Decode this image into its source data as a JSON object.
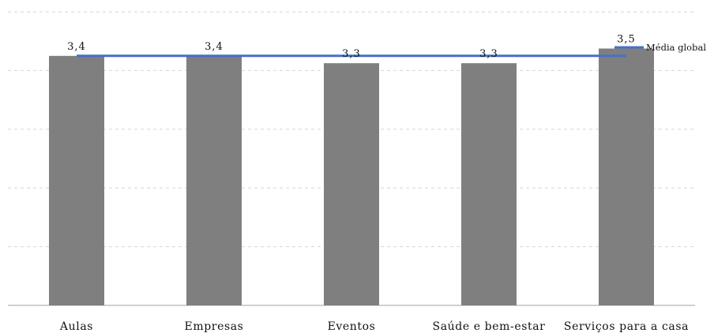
{
  "chart_data": {
    "type": "bar",
    "categories": [
      "Aulas",
      "Empresas",
      "Eventos",
      "Saúde e bem-estar",
      "Serviços para a casa"
    ],
    "series": [
      {
        "values": [
          3.4,
          3.4,
          3.3,
          3.3,
          3.5
        ],
        "data_labels": [
          "3,4",
          "3,4",
          "3,3",
          "3,3",
          "3,5"
        ]
      }
    ],
    "reference_line": {
      "name": "Média global",
      "value": 3.4
    },
    "ylim": [
      0,
      4
    ],
    "grid": true,
    "legend": "top-right",
    "colors": {
      "bar": "#7f7f7f",
      "line": "#4472c4",
      "grid": "#d6d6d6"
    }
  }
}
